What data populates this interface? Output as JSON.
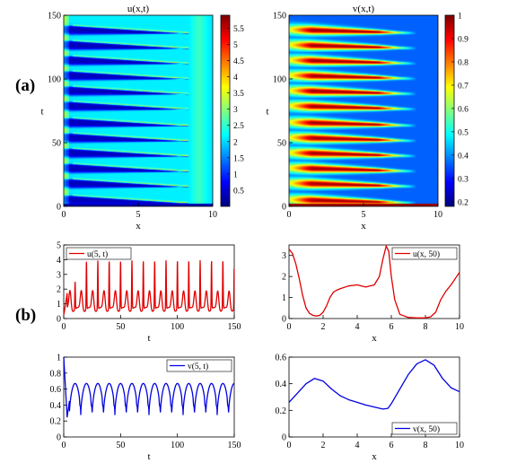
{
  "panel_labels": [
    "(a)",
    "(b)"
  ],
  "chart_data": [
    {
      "id": "heat_u",
      "type": "heatmap",
      "title": "u(x,t)",
      "xlabel": "x",
      "ylabel": "t",
      "xlim": [
        0,
        10
      ],
      "ylim": [
        0,
        150
      ],
      "xticks": [
        0,
        5,
        10
      ],
      "yticks": [
        0,
        50,
        100,
        150
      ],
      "colorbar": {
        "range": [
          0,
          5.9
        ],
        "ticks": [
          "0.5",
          "1",
          "1.5",
          "2",
          "2.5",
          "3",
          "3.5",
          "4",
          "4.5",
          "5",
          "5.5"
        ],
        "colormap": "jet"
      },
      "stripe_t": [
        5,
        18,
        30,
        42,
        54,
        66,
        79,
        91,
        103,
        115,
        127,
        139
      ]
    },
    {
      "id": "heat_v",
      "type": "heatmap",
      "title": "v(x,t)",
      "xlabel": "x",
      "ylabel": "t",
      "xlim": [
        0,
        10
      ],
      "ylim": [
        0,
        150
      ],
      "xticks": [
        0,
        5,
        10
      ],
      "yticks": [
        0,
        50,
        100,
        150
      ],
      "colorbar": {
        "range": [
          0.18,
          1.0
        ],
        "ticks": [
          "0.2",
          "0.3",
          "0.4",
          "0.5",
          "0.6",
          "0.7",
          "0.8",
          "0.9",
          "1"
        ],
        "colormap": "jet"
      },
      "stripe_t": [
        5,
        18,
        30,
        42,
        54,
        66,
        79,
        91,
        103,
        115,
        127,
        139
      ]
    },
    {
      "id": "u5",
      "type": "line",
      "xlabel": "t",
      "ylabel": "",
      "xlim": [
        0,
        150
      ],
      "ylim": [
        0,
        5
      ],
      "xticks": [
        0,
        50,
        100,
        150
      ],
      "yticks": [
        0,
        1,
        2,
        3,
        4,
        5
      ],
      "legend": "top-left",
      "color": "#e00000",
      "series": [
        {
          "name": "u(5, t)"
        }
      ],
      "peak_t": [
        10,
        20,
        30,
        40,
        50,
        60,
        70,
        80,
        90,
        100,
        110,
        120,
        130,
        140,
        150
      ],
      "peak_small": 1.8,
      "peak_big": 3.9,
      "baseline": 0.6
    },
    {
      "id": "ux50",
      "type": "line",
      "xlabel": "x",
      "ylabel": "",
      "xlim": [
        0,
        10
      ],
      "ylim": [
        0,
        3.5
      ],
      "xticks": [
        0,
        2,
        4,
        6,
        8,
        10
      ],
      "yticks": [
        0,
        1,
        2,
        3
      ],
      "legend": "top-right",
      "color": "#e00000",
      "series": [
        {
          "name": "u(x, 50)",
          "x": [
            0,
            0.2,
            0.4,
            0.6,
            0.8,
            1.0,
            1.2,
            1.4,
            1.6,
            1.8,
            2.0,
            2.2,
            2.4,
            2.6,
            2.8,
            3.0,
            3.5,
            4.0,
            4.5,
            5.0,
            5.3,
            5.5,
            5.7,
            5.85,
            6.0,
            6.2,
            6.5,
            7.0,
            7.5,
            8.0,
            8.3,
            8.6,
            8.9,
            9.2,
            9.5,
            10.0
          ],
          "y": [
            3.3,
            3.1,
            2.6,
            1.9,
            1.1,
            0.5,
            0.25,
            0.15,
            0.12,
            0.15,
            0.3,
            0.6,
            1.0,
            1.25,
            1.35,
            1.42,
            1.55,
            1.6,
            1.5,
            1.6,
            2.0,
            2.8,
            3.45,
            3.2,
            2.0,
            0.9,
            0.2,
            0.05,
            0.03,
            0.03,
            0.08,
            0.3,
            0.9,
            1.3,
            1.6,
            2.2
          ]
        }
      ]
    },
    {
      "id": "v5",
      "type": "line",
      "xlabel": "t",
      "ylabel": "",
      "xlim": [
        0,
        150
      ],
      "ylim": [
        0,
        1
      ],
      "xticks": [
        0,
        50,
        100,
        150
      ],
      "yticks": [
        0,
        0.2,
        0.4,
        0.6,
        0.8,
        1
      ],
      "legend": "top-right",
      "color": "#0000e0",
      "series": [
        {
          "name": "v(5, t)"
        }
      ],
      "peak_t": [
        10,
        20,
        30,
        40,
        50,
        60,
        70,
        80,
        90,
        100,
        110,
        120,
        130,
        140,
        150
      ],
      "vmax": 0.67,
      "vmin": 0.28
    },
    {
      "id": "vx50",
      "type": "line",
      "xlabel": "x",
      "ylabel": "",
      "xlim": [
        0,
        10
      ],
      "ylim": [
        0,
        0.6
      ],
      "xticks": [
        0,
        2,
        4,
        6,
        8,
        10
      ],
      "yticks": [
        0,
        0.2,
        0.4,
        0.6
      ],
      "legend": "bottom-right",
      "color": "#0000e0",
      "series": [
        {
          "name": "v(x, 50)",
          "x": [
            0,
            0.5,
            1.0,
            1.5,
            2.0,
            2.5,
            3.0,
            3.5,
            4.0,
            4.5,
            5.0,
            5.5,
            5.8,
            6.0,
            6.5,
            7.0,
            7.5,
            8.0,
            8.5,
            9.0,
            9.5,
            10.0
          ],
          "y": [
            0.26,
            0.33,
            0.4,
            0.44,
            0.42,
            0.36,
            0.31,
            0.28,
            0.26,
            0.24,
            0.225,
            0.21,
            0.215,
            0.25,
            0.36,
            0.47,
            0.55,
            0.58,
            0.54,
            0.44,
            0.37,
            0.34
          ]
        }
      ]
    }
  ]
}
